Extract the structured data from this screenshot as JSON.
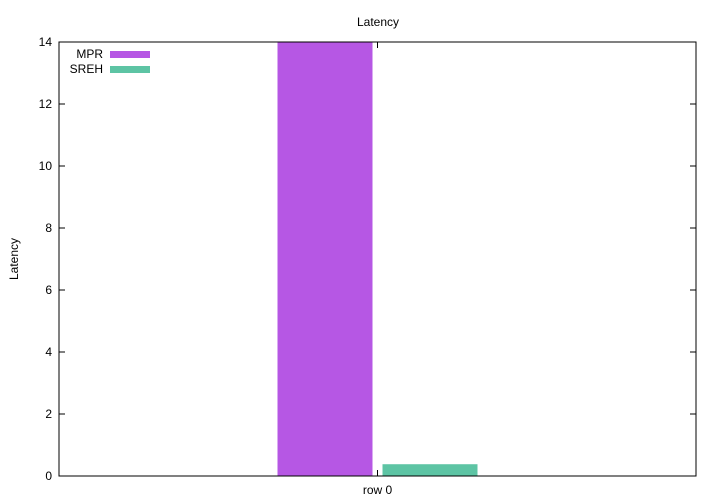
{
  "chart_data": {
    "type": "bar",
    "title": "Latency",
    "xlabel": "",
    "ylabel": "Latency",
    "categories": [
      "row 0"
    ],
    "series": [
      {
        "name": "MPR",
        "values": [
          14.0
        ],
        "color": "#b657e4"
      },
      {
        "name": "SREH",
        "values": [
          0.38
        ],
        "color": "#5dc4a4"
      }
    ],
    "ylim": [
      0,
      14
    ],
    "yticks": [
      "0",
      "2",
      "4",
      "6",
      "8",
      "10",
      "12",
      "14"
    ],
    "grid": false,
    "legend_position": "top-left"
  }
}
